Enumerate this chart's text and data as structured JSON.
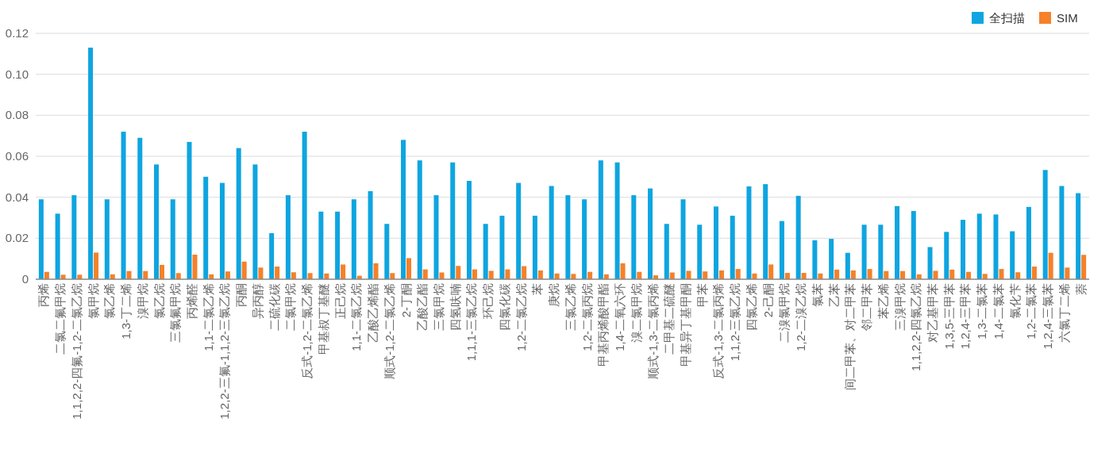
{
  "chart_data": {
    "type": "bar",
    "categories": [
      "丙烯",
      "二氯二氟甲烷",
      "1,1,2,2-四氟-1,2-二氯乙烷",
      "氯甲烷",
      "氯乙烯",
      "1,3-丁二烯",
      "溴甲烷",
      "氯乙烷",
      "三氯氟甲烷",
      "丙烯醛",
      "1,1-二氯乙烯",
      "1,2,2-三氟-1,1,2-三氯乙烷",
      "丙酮",
      "异丙醇",
      "二硫化碳",
      "二氯甲烷",
      "反式-1,2-二氯乙烯",
      "甲基叔丁基醚",
      "正己烷",
      "1,1-二氯乙烷",
      "乙酸乙烯酯",
      "顺式-1,2-二氯乙烯",
      "2-丁酮",
      "乙酸乙酯",
      "三氯甲烷",
      "四氢呋喃",
      "1,1,1-三氯乙烷",
      "环己烷",
      "四氯化碳",
      "1,2-二氯乙烷",
      "苯",
      "庚烷",
      "三氯乙烯",
      "1,2-二氯丙烷",
      "甲基丙烯酸甲酯",
      "1,4-二氧六环",
      "溴二氯甲烷",
      "顺式-1,3-二氯丙烯",
      "二甲基二硫醚",
      "甲基异丁基甲酮",
      "甲苯",
      "反式-1,3-二氯丙烯",
      "1,1,2-三氯乙烷",
      "四氯乙烯",
      "2-己酮",
      "二溴氯甲烷",
      "1,2-二溴乙烷",
      "氯苯",
      "乙苯",
      "间二甲苯、对二甲苯",
      "邻二甲苯",
      "苯乙烯",
      "三溴甲烷",
      "1,1,2,2-四氯乙烷",
      "对乙基甲苯",
      "1,3,5-三甲苯",
      "1,2,4-三甲苯",
      "1,3-二氯苯",
      "1,4-二氯苯",
      "氯化苄",
      "1,2-二氯苯",
      "1,2,4-三氯苯",
      "六氯丁二烯",
      "萘"
    ],
    "series": [
      {
        "name": "全扫描",
        "color": "#0ea5e0",
        "values": [
          0.039,
          0.032,
          0.041,
          0.113,
          0.039,
          0.072,
          0.069,
          0.056,
          0.039,
          0.067,
          0.05,
          0.047,
          0.064,
          0.056,
          0.0225,
          0.041,
          0.072,
          0.033,
          0.033,
          0.039,
          0.043,
          0.027,
          0.068,
          0.058,
          0.041,
          0.057,
          0.048,
          0.027,
          0.031,
          0.047,
          0.031,
          0.0455,
          0.041,
          0.039,
          0.058,
          0.057,
          0.041,
          0.0443,
          0.027,
          0.039,
          0.0266,
          0.0355,
          0.031,
          0.0453,
          0.0464,
          0.0284,
          0.0407,
          0.019,
          0.0197,
          0.0129,
          0.0266,
          0.0266,
          0.0357,
          0.0333,
          0.0157,
          0.0231,
          0.029,
          0.032,
          0.0316,
          0.0234,
          0.0353,
          0.0533,
          0.0455,
          0.042
        ]
      },
      {
        "name": "SIM",
        "color": "#f5812a",
        "values": [
          0.0036,
          0.0022,
          0.0022,
          0.013,
          0.0024,
          0.004,
          0.004,
          0.007,
          0.003,
          0.012,
          0.0024,
          0.0038,
          0.0086,
          0.0057,
          0.0062,
          0.0034,
          0.003,
          0.0028,
          0.0072,
          0.0017,
          0.0078,
          0.003,
          0.0103,
          0.0048,
          0.0033,
          0.0065,
          0.0048,
          0.0041,
          0.0048,
          0.0064,
          0.0043,
          0.0028,
          0.0026,
          0.0036,
          0.0024,
          0.0078,
          0.0036,
          0.0019,
          0.0033,
          0.0041,
          0.0038,
          0.0043,
          0.005,
          0.0028,
          0.0072,
          0.0031,
          0.0031,
          0.0028,
          0.0047,
          0.0043,
          0.005,
          0.004,
          0.004,
          0.0024,
          0.0041,
          0.0047,
          0.0036,
          0.0026,
          0.005,
          0.0034,
          0.0062,
          0.0129,
          0.0057,
          0.0119
        ]
      }
    ],
    "ylim": [
      0,
      0.12
    ],
    "yticks": [
      0,
      0.02,
      0.04,
      0.06,
      0.08,
      {
        "value": 0.1,
        "label": "0.10"
      },
      0.12
    ],
    "grid": "y",
    "legend": "top right"
  }
}
